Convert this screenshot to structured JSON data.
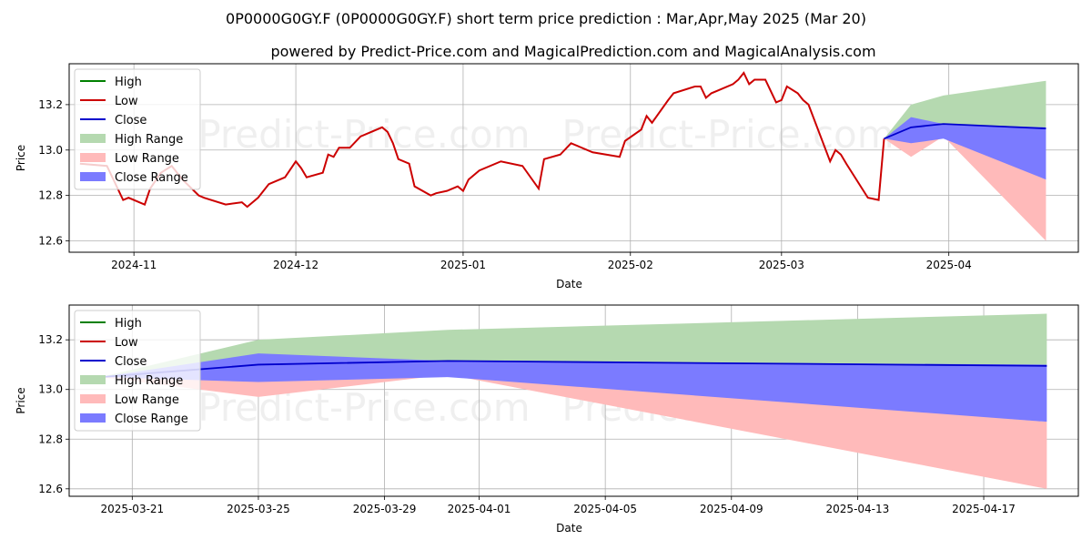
{
  "title": "0P0000G0GY.F (0P0000G0GY.F) short term price prediction : Mar,Apr,May 2025 (Mar 20)",
  "subtitle": "powered by Predict-Price.com and MagicalPrediction.com and MagicalAnalysis.com",
  "watermark": "Predict-Price.com",
  "colors": {
    "high": "#008000",
    "low": "#cc0000",
    "close": "#0000cc",
    "high_range": "#b5d9b0",
    "low_range": "#ffbaba",
    "close_range": "#7b7bff"
  },
  "legend": {
    "high": "High",
    "low": "Low",
    "close": "Close",
    "high_range": "High Range",
    "low_range": "Low Range",
    "close_range": "Close Range"
  },
  "chart_data": [
    {
      "type": "line",
      "xlabel": "Date",
      "ylabel": "Price",
      "ylim": [
        12.55,
        13.38
      ],
      "xlim": [
        "2024-10-20",
        "2025-04-25"
      ],
      "yticks": [
        "12.6",
        "12.8",
        "13.0",
        "13.2"
      ],
      "xticks": [
        "2024-11",
        "2024-12",
        "2025-01",
        "2025-02",
        "2025-03",
        "2025-04"
      ],
      "grid": true,
      "legend_position": "top-left",
      "history": {
        "x": [
          "2024-10-22",
          "2024-10-27",
          "2024-10-30",
          "2024-10-31",
          "2024-11-03",
          "2024-11-04",
          "2024-11-06",
          "2024-11-08",
          "2024-11-10",
          "2024-11-13",
          "2024-11-14",
          "2024-11-18",
          "2024-11-21",
          "2024-11-22",
          "2024-11-24",
          "2024-11-26",
          "2024-11-29",
          "2024-12-01",
          "2024-12-02",
          "2024-12-03",
          "2024-12-06",
          "2024-12-07",
          "2024-12-08",
          "2024-12-09",
          "2024-12-10",
          "2024-12-11",
          "2024-12-13",
          "2024-12-17",
          "2024-12-18",
          "2024-12-19",
          "2024-12-20",
          "2024-12-22",
          "2024-12-23",
          "2024-12-26",
          "2024-12-27",
          "2024-12-29",
          "2024-12-31",
          "2025-01-01",
          "2025-01-02",
          "2025-01-04",
          "2025-01-08",
          "2025-01-12",
          "2025-01-15",
          "2025-01-16",
          "2025-01-19",
          "2025-01-21",
          "2025-01-25",
          "2025-01-30",
          "2025-01-31",
          "2025-02-03",
          "2025-02-04",
          "2025-02-05",
          "2025-02-08",
          "2025-02-09",
          "2025-02-13",
          "2025-02-14",
          "2025-02-15",
          "2025-02-16",
          "2025-02-17",
          "2025-02-20",
          "2025-02-21",
          "2025-02-22",
          "2025-02-23",
          "2025-02-24",
          "2025-02-26",
          "2025-02-27",
          "2025-02-28",
          "2025-03-01",
          "2025-03-02",
          "2025-03-04",
          "2025-03-05",
          "2025-03-06",
          "2025-03-10",
          "2025-03-11",
          "2025-03-12",
          "2025-03-13",
          "2025-03-17",
          "2025-03-19",
          "2025-03-20"
        ],
        "y": [
          12.94,
          12.93,
          12.78,
          12.79,
          12.76,
          12.83,
          12.9,
          12.93,
          12.87,
          12.8,
          12.79,
          12.76,
          12.77,
          12.75,
          12.79,
          12.85,
          12.88,
          12.95,
          12.92,
          12.88,
          12.9,
          12.98,
          12.97,
          13.01,
          13.01,
          13.01,
          13.06,
          13.1,
          13.08,
          13.03,
          12.96,
          12.94,
          12.84,
          12.8,
          12.81,
          12.82,
          12.84,
          12.82,
          12.87,
          12.91,
          12.95,
          12.93,
          12.83,
          12.96,
          12.98,
          13.03,
          12.99,
          12.97,
          13.04,
          13.09,
          13.15,
          13.12,
          13.22,
          13.25,
          13.28,
          13.28,
          13.23,
          13.25,
          13.26,
          13.29,
          13.31,
          13.34,
          13.29,
          13.31,
          13.31,
          13.26,
          13.21,
          13.22,
          13.28,
          13.25,
          13.22,
          13.2,
          12.95,
          13.0,
          12.98,
          12.94,
          12.79,
          12.78,
          13.05
        ]
      },
      "forecast": {
        "x": [
          "2025-03-20",
          "2025-03-25",
          "2025-03-31",
          "2025-04-19"
        ],
        "close": [
          13.05,
          13.1,
          13.115,
          13.095
        ],
        "high_range": [
          [
            13.05,
            13.05
          ],
          [
            13.03,
            13.2
          ],
          [
            13.06,
            13.24
          ],
          [
            13.1,
            13.305
          ]
        ],
        "low_range": [
          [
            13.05,
            13.05
          ],
          [
            12.97,
            13.05
          ],
          [
            13.06,
            13.06
          ],
          [
            12.6,
            12.87
          ]
        ],
        "close_range": [
          [
            13.05,
            13.05
          ],
          [
            13.03,
            13.145
          ],
          [
            13.05,
            13.115
          ],
          [
            12.87,
            13.1
          ]
        ]
      }
    },
    {
      "type": "line",
      "xlabel": "Date",
      "ylabel": "Price",
      "ylim": [
        12.57,
        13.34
      ],
      "xlim": [
        "2025-03-19",
        "2025-04-20"
      ],
      "yticks": [
        "12.6",
        "12.8",
        "13.0",
        "13.2"
      ],
      "xticks": [
        "2025-03-21",
        "2025-03-25",
        "2025-03-29",
        "2025-04-01",
        "2025-04-05",
        "2025-04-09",
        "2025-04-13",
        "2025-04-17"
      ],
      "grid": true,
      "legend_position": "top-left",
      "forecast": {
        "x": [
          "2025-03-20",
          "2025-03-25",
          "2025-03-31",
          "2025-04-19"
        ],
        "close": [
          13.05,
          13.1,
          13.115,
          13.095
        ],
        "high_range": [
          [
            13.05,
            13.05
          ],
          [
            13.03,
            13.2
          ],
          [
            13.06,
            13.24
          ],
          [
            13.1,
            13.305
          ]
        ],
        "low_range": [
          [
            13.05,
            13.05
          ],
          [
            12.97,
            13.05
          ],
          [
            13.06,
            13.06
          ],
          [
            12.6,
            12.87
          ]
        ],
        "close_range": [
          [
            13.05,
            13.05
          ],
          [
            13.03,
            13.145
          ],
          [
            13.05,
            13.115
          ],
          [
            12.87,
            13.1
          ]
        ]
      }
    }
  ]
}
